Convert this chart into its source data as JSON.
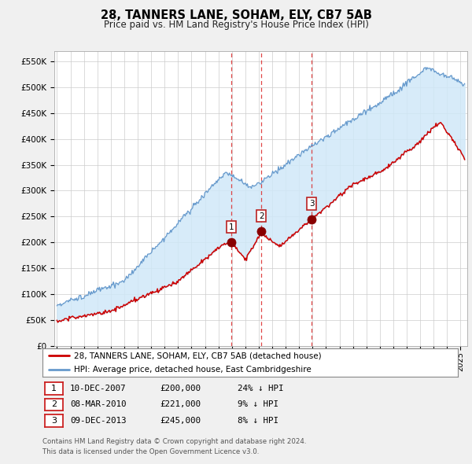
{
  "title": "28, TANNERS LANE, SOHAM, ELY, CB7 5AB",
  "subtitle": "Price paid vs. HM Land Registry's House Price Index (HPI)",
  "title_fontsize": 10.5,
  "subtitle_fontsize": 8.5,
  "ylabel_ticks": [
    "£0",
    "£50K",
    "£100K",
    "£150K",
    "£200K",
    "£250K",
    "£300K",
    "£350K",
    "£400K",
    "£450K",
    "£500K",
    "£550K"
  ],
  "ytick_values": [
    0,
    50000,
    100000,
    150000,
    200000,
    250000,
    300000,
    350000,
    400000,
    450000,
    500000,
    550000
  ],
  "ylim": [
    0,
    570000
  ],
  "xlim_start": 1994.8,
  "xlim_end": 2025.5,
  "sales": [
    {
      "num": 1,
      "date": "10-DEC-2007",
      "price": 200000,
      "pct": "24%",
      "direction": "↓",
      "x_year": 2007.94
    },
    {
      "num": 2,
      "date": "08-MAR-2010",
      "price": 221000,
      "pct": "9%",
      "direction": "↓",
      "x_year": 2010.19
    },
    {
      "num": 3,
      "date": "09-DEC-2013",
      "price": 245000,
      "pct": "8%",
      "direction": "↓",
      "x_year": 2013.94
    }
  ],
  "line_red_color": "#cc0000",
  "line_blue_color": "#6699cc",
  "fill_color": "#d0e8f8",
  "marker_color": "#880000",
  "vline_color": "#dd3333",
  "legend_label_red": "28, TANNERS LANE, SOHAM, ELY, CB7 5AB (detached house)",
  "legend_label_blue": "HPI: Average price, detached house, East Cambridgeshire",
  "footer1": "Contains HM Land Registry data © Crown copyright and database right 2024.",
  "footer2": "This data is licensed under the Open Government Licence v3.0.",
  "background_color": "#f0f0f0",
  "plot_bg_color": "#ffffff",
  "grid_color": "#cccccc"
}
